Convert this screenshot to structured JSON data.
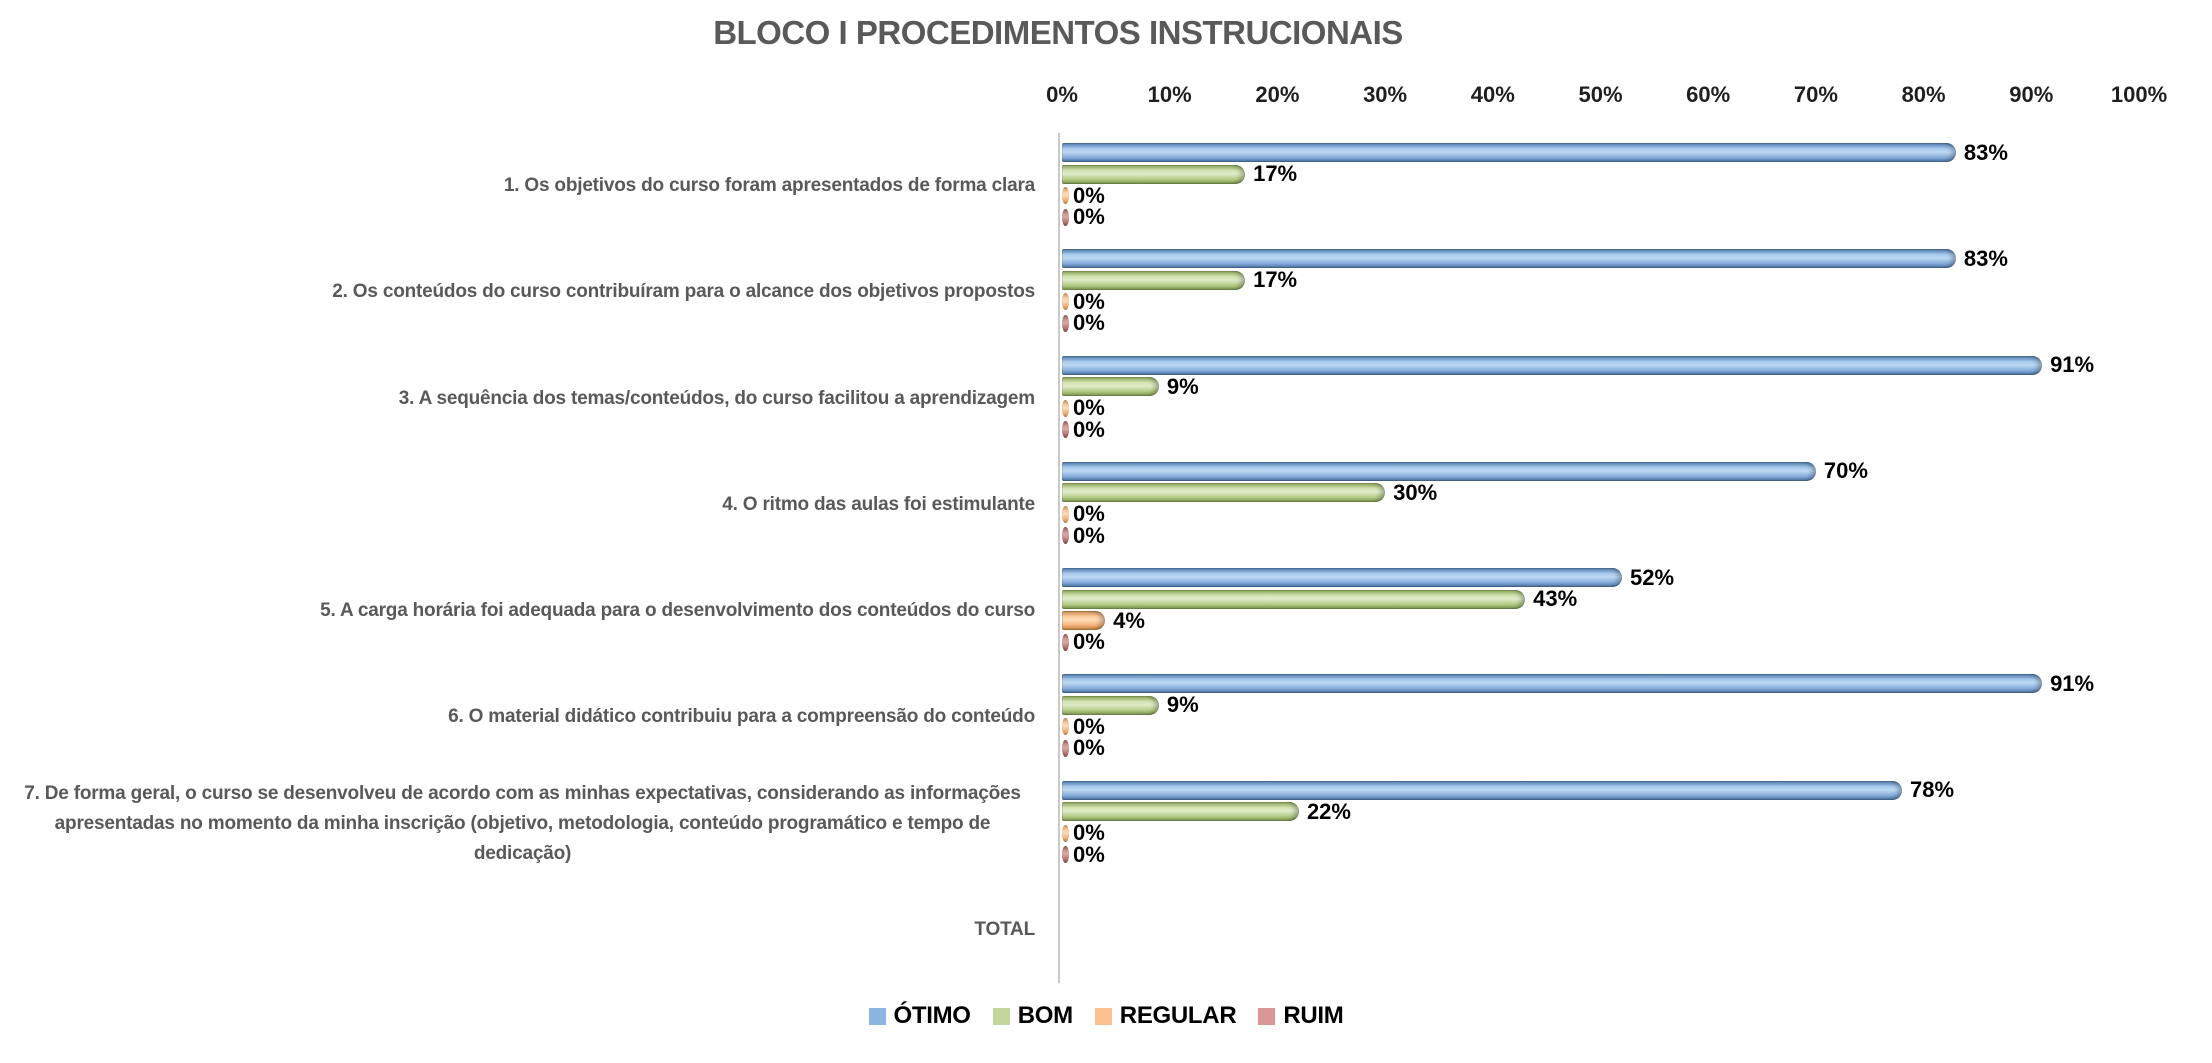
{
  "title": "BLOCO I PROCEDIMENTOS INSTRUCIONAIS",
  "colors": {
    "background": "#FFFFFF",
    "title_text": "#595959",
    "category_text": "#595959",
    "tick_text": "#1F1F1F",
    "value_label_text": "#000000",
    "legend_text": "#000000",
    "axis_line": "#C9C9C9"
  },
  "chart_data": {
    "type": "bar",
    "orientation": "horizontal",
    "title": "BLOCO I PROCEDIMENTOS INSTRUCIONAIS",
    "xlabel": "",
    "ylabel": "",
    "xlim": [
      0,
      100
    ],
    "x_ticks": [
      "0%",
      "10%",
      "20%",
      "30%",
      "40%",
      "50%",
      "60%",
      "70%",
      "80%",
      "90%",
      "100%"
    ],
    "grid": false,
    "legend_position": "bottom",
    "value_label_suffix": "%",
    "categories": [
      "1. Os objetivos do curso foram apresentados de forma clara",
      "2. Os conteúdos do curso contribuíram para o alcance dos objetivos propostos",
      "3. A sequência dos temas/conteúdos, do curso facilitou a aprendizagem",
      "4. O ritmo das aulas foi estimulante",
      "5. A carga horária foi adequada para o desenvolvimento dos conteúdos do curso",
      "6. O material didático contribuiu para a compreensão do conteúdo",
      "7. De forma geral, o curso se desenvolveu de acordo com as minhas expectativas, considerando as informações apresentadas no momento da minha inscrição (objetivo, metodologia, conteúdo programático e tempo de dedicação)",
      "TOTAL"
    ],
    "series": [
      {
        "name": "ÓTIMO",
        "legend_color": "#8EB4E2",
        "gradient": [
          "#4E79AB",
          "#A9CBEE",
          "#BCD8F4",
          "#82A9D8",
          "#466F9E"
        ],
        "values": [
          83,
          83,
          91,
          70,
          52,
          91,
          78,
          null
        ]
      },
      {
        "name": "BOM",
        "legend_color": "#C3D69B",
        "gradient": [
          "#8BA558",
          "#D4E4B4",
          "#DFEBC8",
          "#AFC87F",
          "#78914F"
        ],
        "values": [
          17,
          17,
          9,
          30,
          43,
          9,
          22,
          null
        ]
      },
      {
        "name": "REGULAR",
        "legend_color": "#FAC090",
        "gradient": [
          "#C98B4F",
          "#FBCEA0",
          "#FDDCB9",
          "#F0AC72",
          "#BD7B3F"
        ],
        "values": [
          0,
          0,
          0,
          0,
          4,
          0,
          0,
          null
        ]
      },
      {
        "name": "RUIM",
        "legend_color": "#D99694",
        "gradient": [
          "#8E4E4B",
          "#CE9B98",
          "#D8A8A5",
          "#B37471",
          "#7F403D"
        ],
        "values": [
          0,
          0,
          0,
          0,
          0,
          0,
          0,
          null
        ]
      }
    ]
  }
}
